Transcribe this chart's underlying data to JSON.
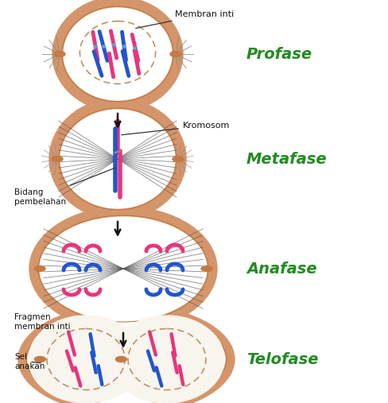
{
  "phases": [
    "Profase",
    "Metafase",
    "Anafase",
    "Telofase"
  ],
  "phase_color": "#228B22",
  "phase_fontsize": 14,
  "cell_outer_color": "#D4956A",
  "cell_white": "#FFFFFF",
  "chromosome_pink": "#E8357A",
  "chromosome_blue": "#2255CC",
  "arrow_color": "#111111",
  "bg_color": "#FFFFFF",
  "label_membran": "Membran inti",
  "label_kromosom": "Kromosom",
  "label_bidang": "Bidang\npembelahan",
  "label_fragmen": "Fragmen\nmembran inti",
  "label_sel": "Sel\nanakan",
  "spindle_color": "#555555",
  "centriole_color": "#C47A45",
  "nucleus_dash_color": "#C49060"
}
